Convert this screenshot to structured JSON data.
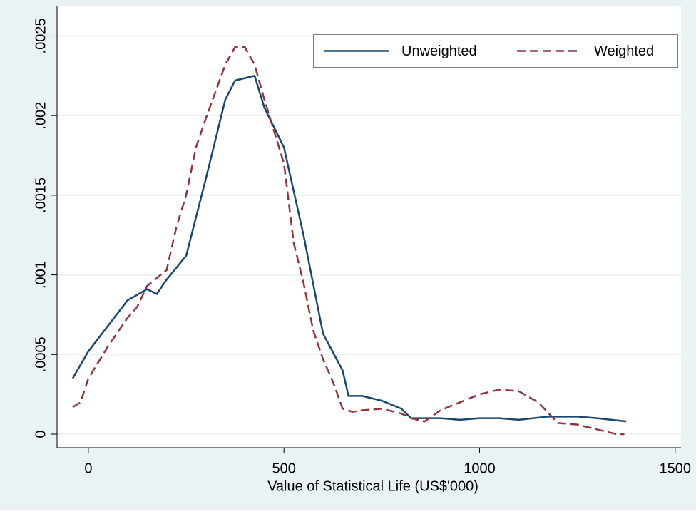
{
  "chart_data": {
    "type": "line",
    "xlabel": "Value of Statistical Life (US$'000)",
    "xlim": [
      -80,
      1515
    ],
    "xticks": [
      0,
      500,
      1000,
      1500
    ],
    "ylim": [
      -8.5e-05,
      0.00269
    ],
    "yticks": [
      {
        "value": 0,
        "label": "0"
      },
      {
        "value": 0.0005,
        "label": ".0005"
      },
      {
        "value": 0.001,
        "label": ".001"
      },
      {
        "value": 0.0015,
        "label": ".0015"
      },
      {
        "value": 0.002,
        "label": ".002"
      },
      {
        "value": 0.0025,
        "label": ".0025"
      }
    ],
    "grid": true,
    "legend": "top-right",
    "series": [
      {
        "name": "Unweighted",
        "color": "#1a476f",
        "dash": "solid",
        "x": [
          -40,
          0,
          50,
          100,
          150,
          175,
          200,
          250,
          300,
          350,
          375,
          425,
          450,
          500,
          550,
          600,
          650,
          665,
          700,
          750,
          800,
          825,
          900,
          950,
          1000,
          1050,
          1100,
          1175,
          1250,
          1300,
          1375
        ],
        "values": [
          0.00035,
          0.00052,
          0.00068,
          0.00084,
          0.00091,
          0.00088,
          0.00097,
          0.00112,
          0.0016,
          0.0021,
          0.00222,
          0.00225,
          0.00205,
          0.0018,
          0.00125,
          0.00063,
          0.0004,
          0.00024,
          0.00024,
          0.00021,
          0.00016,
          0.0001,
          0.0001,
          9e-05,
          0.0001,
          0.0001,
          9e-05,
          0.00011,
          0.00011,
          0.0001,
          8e-05
        ]
      },
      {
        "name": "Weighted",
        "color": "#90353b",
        "dash": "dashed",
        "x": [
          -40,
          -20,
          0,
          50,
          100,
          125,
          150,
          200,
          225,
          250,
          275,
          300,
          325,
          350,
          375,
          400,
          425,
          450,
          500,
          525,
          550,
          575,
          600,
          625,
          650,
          675,
          700,
          750,
          800,
          825,
          860,
          900,
          950,
          1000,
          1050,
          1100,
          1150,
          1200,
          1250,
          1300,
          1350,
          1370
        ],
        "values": [
          0.00017,
          0.0002,
          0.00035,
          0.00055,
          0.00073,
          0.0008,
          0.00093,
          0.00103,
          0.0013,
          0.0015,
          0.0018,
          0.00198,
          0.00215,
          0.00232,
          0.00243,
          0.00243,
          0.00232,
          0.0021,
          0.0017,
          0.0012,
          0.00095,
          0.00065,
          0.00047,
          0.00033,
          0.00016,
          0.00014,
          0.00015,
          0.00016,
          0.00013,
          0.0001,
          8e-05,
          0.00015,
          0.0002,
          0.00025,
          0.00028,
          0.00027,
          0.0002,
          7e-05,
          6e-05,
          3e-05,
          0,
          0
        ]
      }
    ]
  }
}
